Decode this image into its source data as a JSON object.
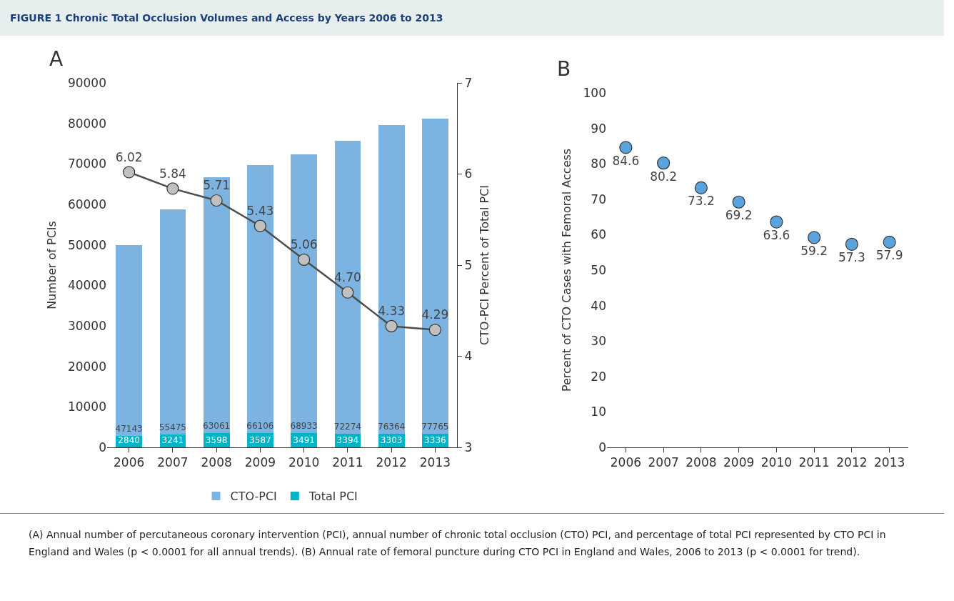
{
  "chart_data": [
    {
      "type": "bar",
      "title": "FIGURE 1 Chronic Total Occlusion Volumes and Access by Years 2006 to 2013",
      "ylabel": "Number of PCIs",
      "y2label": "CTO-PCI Percent of Total PCI",
      "categories": [
        "2006",
        "2007",
        "2008",
        "2009",
        "2010",
        "2011",
        "2012",
        "2013"
      ],
      "stacked": true,
      "data_labels": true,
      "legend": "bottom",
      "marker": "circle",
      "line_style": "solid",
      "series": [
        {
          "name": "Total PCI",
          "color": "#00b4c8",
          "values": [
            2840,
            3241,
            3598,
            3587,
            3491,
            3394,
            3303,
            3336
          ]
        },
        {
          "name": "CTO-PCI",
          "color": "#7db3e1",
          "values": [
            47143,
            55475,
            63061,
            66106,
            68933,
            72274,
            76364,
            77765
          ]
        },
        {
          "type": "line",
          "axis": "y2",
          "color": "#4d4d4d",
          "values": [
            6.02,
            5.84,
            5.71,
            5.43,
            5.06,
            4.7,
            4.33,
            4.29
          ],
          "value_labels": [
            "6.02",
            "5.84",
            "5.71",
            "5.43",
            "5.06",
            "4.70",
            "4.33",
            "4.29"
          ]
        }
      ],
      "ylim": [
        0,
        90000
      ],
      "yticks": [
        0,
        10000,
        20000,
        30000,
        40000,
        50000,
        60000,
        70000,
        80000,
        90000
      ],
      "y2lim": [
        3,
        7
      ],
      "y2ticks": [
        3,
        4,
        5,
        6,
        7
      ],
      "annotations": [
        "A",
        "(A) Annual number of percutaneous coronary intervention (PCI), annual number of chronic total occlusion (CTO) PCI, and percentage of total PCI represented by CTO PCI in England and Wales (p < 0.0001 for all annual trends). (B) Annual rate of femoral puncture during CTO PCI in England and Wales, 2006 to 2013 (p < 0.0001 for trend)."
      ]
    },
    {
      "type": "scatter",
      "ylabel": "Percent of CTO Cases with Femoral Access",
      "categories": [
        "2006",
        "2007",
        "2008",
        "2009",
        "2010",
        "2011",
        "2012",
        "2013"
      ],
      "values": [
        84.6,
        80.2,
        73.2,
        69.2,
        63.6,
        59.2,
        57.3,
        57.9
      ],
      "color": "#5ba3dc",
      "marker": "circle",
      "data_labels": true,
      "ylim": [
        0,
        100
      ],
      "yticks": [
        0,
        10,
        20,
        30,
        40,
        50,
        60,
        70,
        80,
        90,
        100
      ],
      "annotations": [
        "B"
      ]
    }
  ]
}
